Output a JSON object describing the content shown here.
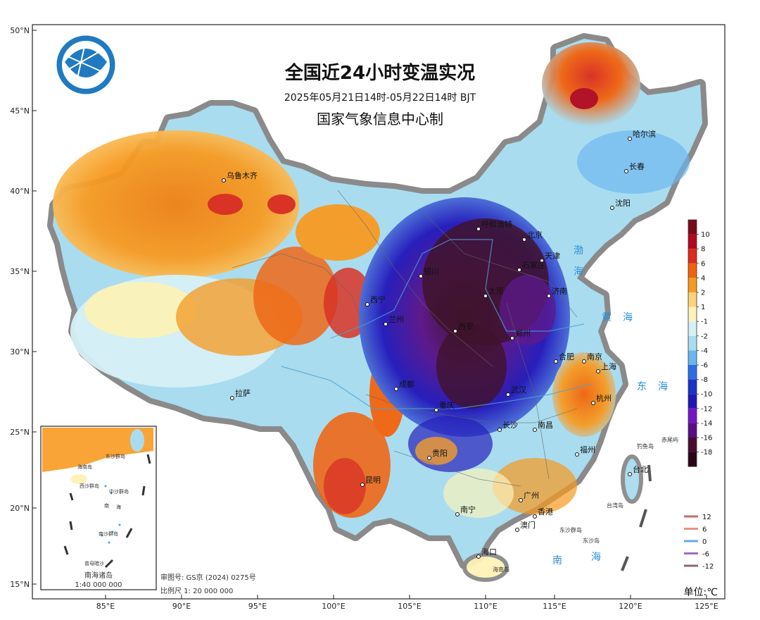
{
  "title": "全国近24小时变温实况",
  "subtitle": "2025年05月21日14时-05月22日14时  BJT",
  "producer": "国家气象信息中心制",
  "unit_label": "单位:℃",
  "review_number": "审图号: GS京 (2024) 0275号",
  "scale": "比例尺 1: 20 000 000",
  "inset": {
    "title": "南海诸岛",
    "scale": "1:40 000 000"
  },
  "axes": {
    "lat_labels": [
      "50°N",
      "45°N",
      "40°N",
      "35°N",
      "30°N",
      "25°N",
      "20°N",
      "15°N"
    ],
    "lon_labels": [
      "85°E",
      "90°E",
      "95°E",
      "100°E",
      "105°E",
      "110°E",
      "115°E",
      "120°E",
      "125°E"
    ]
  },
  "colorbar": {
    "labels": [
      "10",
      "8",
      "6",
      "4",
      "2",
      "1",
      "-1",
      "-2",
      "-4",
      "-6",
      "-8",
      "-10",
      "-12",
      "-14",
      "-16",
      "-18"
    ],
    "colors": [
      "#7a0a1a",
      "#b3081d",
      "#dc2a1b",
      "#f2620c",
      "#f79a21",
      "#fbd279",
      "#fdf3b8",
      "#d6f0f5",
      "#a9dcef",
      "#6cb6f0",
      "#2b6fe6",
      "#1733c9",
      "#2015b8",
      "#7615c6",
      "#5a0f86",
      "#4a0b30",
      "#2a0616"
    ]
  },
  "contour_legend": [
    {
      "label": "12",
      "color": "#c66a6f"
    },
    {
      "label": "6",
      "color": "#e9918f"
    },
    {
      "label": "0",
      "color": "#6aa7e6"
    },
    {
      "label": "-6",
      "color": "#a06ac6"
    },
    {
      "label": "-12",
      "color": "#8c6570"
    }
  ],
  "cities": [
    "哈尔滨",
    "长春",
    "沈阳",
    "北京",
    "天津",
    "石家庄",
    "济南",
    "太原",
    "呼和浩特",
    "银川",
    "西宁",
    "兰州",
    "西安",
    "郑州",
    "乌鲁木齐",
    "拉萨",
    "成都",
    "重庆",
    "贵阳",
    "昆明",
    "武汉",
    "长沙",
    "南昌",
    "合肥",
    "南京",
    "上海",
    "杭州",
    "福州",
    "台北",
    "广州",
    "香港",
    "澳门",
    "南宁",
    "海口"
  ],
  "seas": [
    "渤",
    "海",
    "黄",
    "海",
    "东",
    "海",
    "南",
    "海"
  ],
  "islands": [
    "钓鱼岛",
    "赤尾屿",
    "台湾岛",
    "东沙群岛",
    "东沙岛",
    "海南岛"
  ],
  "inset_labels": [
    "东沙群岛",
    "海南岛",
    "西沙群岛",
    "中沙群岛",
    "南",
    "海",
    "南沙群岛",
    "曾母暗沙"
  ]
}
